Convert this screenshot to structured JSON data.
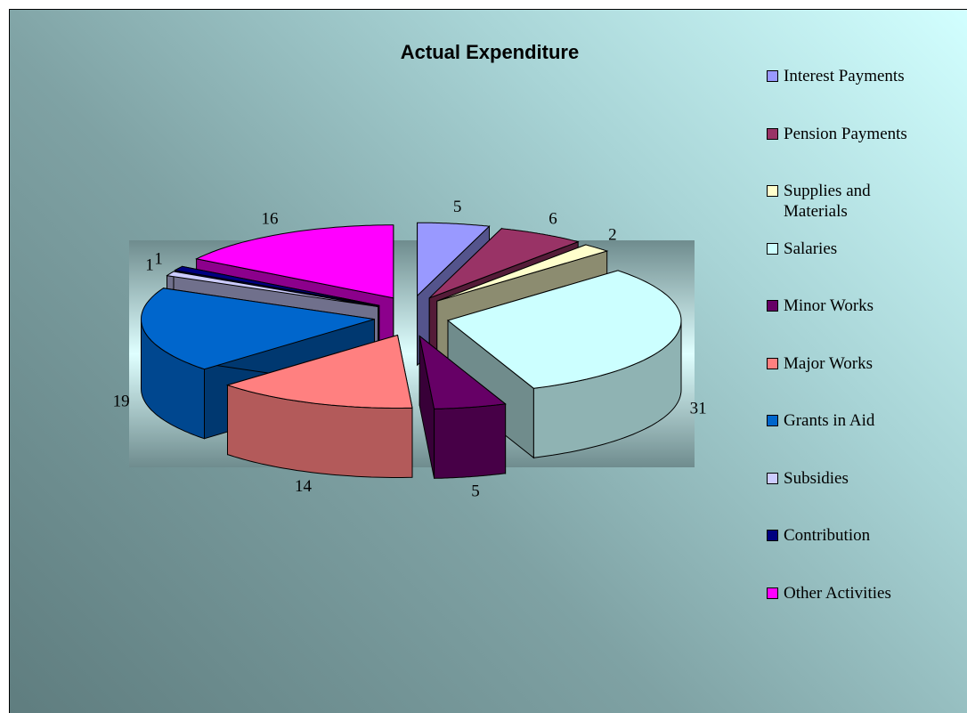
{
  "chart_data": {
    "type": "pie3d",
    "title": "Actual Expenditure",
    "categories": [
      "Interest Payments",
      "Pension Payments",
      "Supplies and Materials",
      "Salaries",
      "Minor Works",
      "Major Works",
      "Grants in Aid",
      "Subsidies",
      "Contribution",
      "Other Activities"
    ],
    "values": [
      5,
      6,
      2,
      31,
      5,
      14,
      19,
      1,
      1,
      16
    ],
    "colors": [
      "#9999ff",
      "#993366",
      "#ffffcc",
      "#ccffff",
      "#660066",
      "#ff8080",
      "#0066cc",
      "#ccccff",
      "#000080",
      "#ff00ff"
    ],
    "legend": "right"
  }
}
